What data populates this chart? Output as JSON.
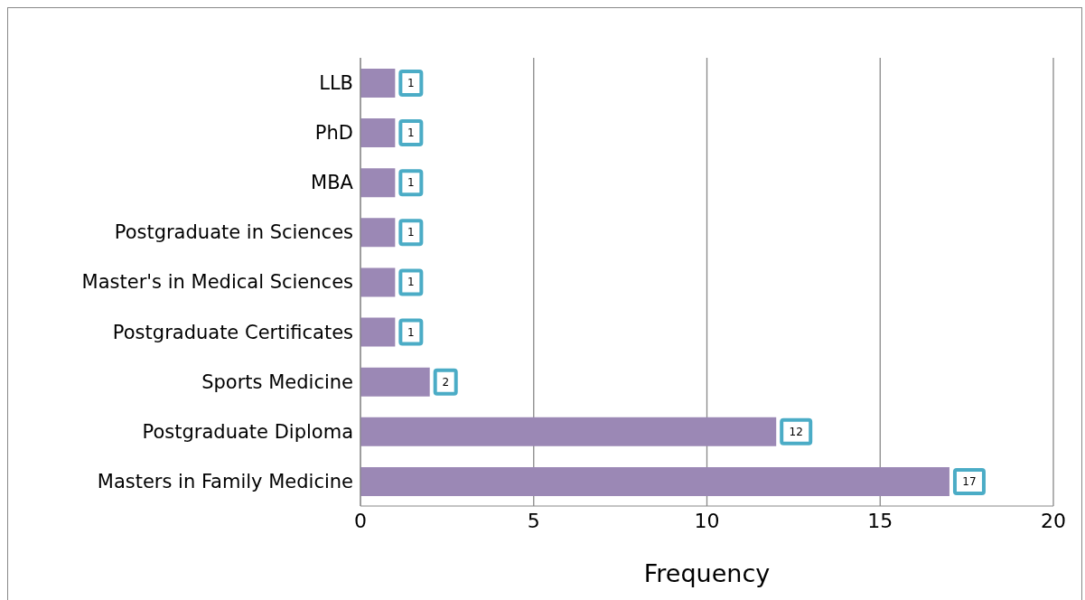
{
  "chart_data": {
    "type": "bar",
    "orientation": "horizontal",
    "xlabel": "Frequency",
    "categories": [
      "LLB",
      "PhD",
      "MBA",
      "Postgraduate in Sciences",
      "Master's in Medical Sciences",
      "Postgraduate Certificates",
      "Sports Medicine",
      "Postgraduate Diploma",
      "Masters in Family Medicine"
    ],
    "values": [
      1,
      1,
      1,
      1,
      1,
      1,
      2,
      12,
      17
    ],
    "color": "#9b88b5",
    "xlim": [
      0,
      20
    ],
    "xticks": [
      0,
      5,
      10,
      15,
      20
    ],
    "grid": "x",
    "data_labels": true,
    "legend": false
  }
}
